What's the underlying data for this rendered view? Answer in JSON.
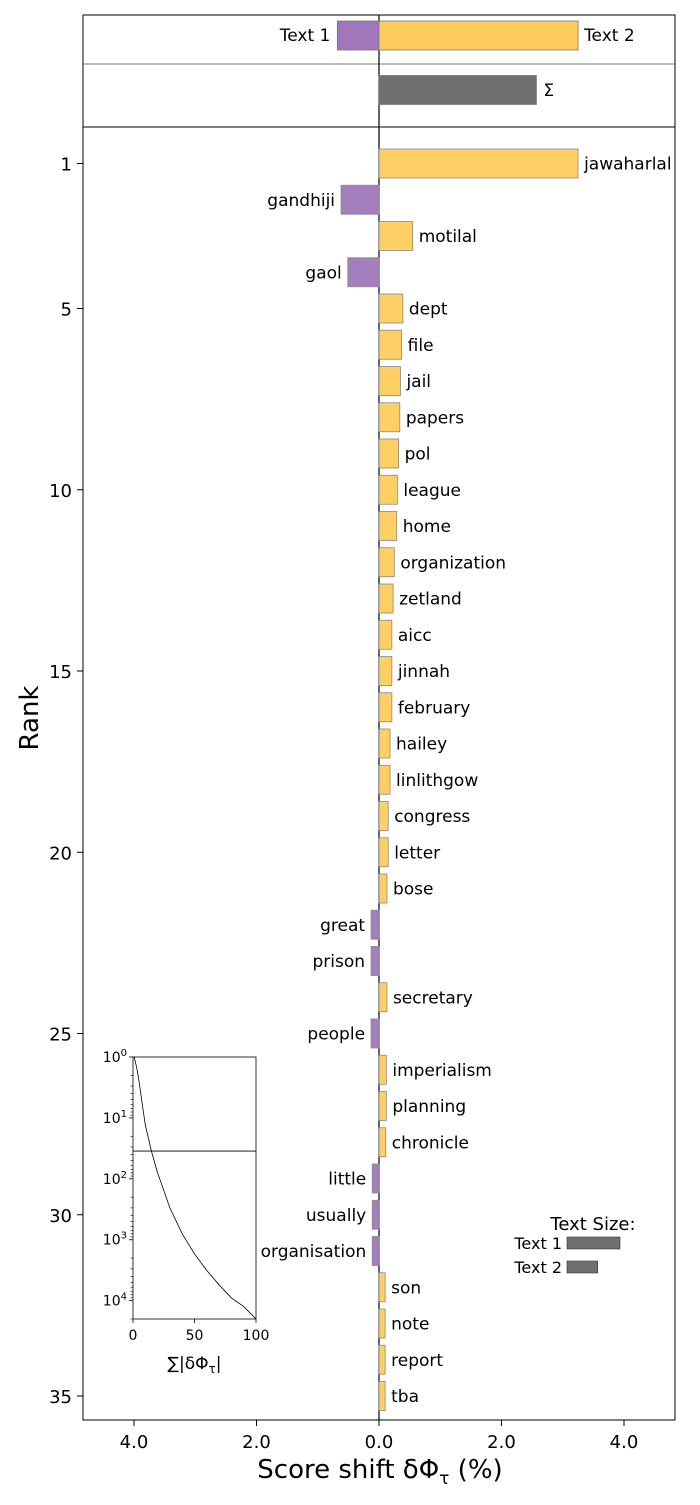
{
  "chart_data": {
    "type": "bar",
    "orientation": "horizontal",
    "xlabel": "Score shift δΦ",
    "xlabel_sub": "τ",
    "xlabel_suffix": " (%)",
    "ylabel": "Rank",
    "xlim": [
      -4.8,
      4.8
    ],
    "x_ticks": [
      -4,
      -2,
      0,
      2,
      4
    ],
    "x_tick_labels": [
      "4.0",
      "2.0",
      "0.0",
      "2.0",
      "4.0"
    ],
    "y_ticks": [
      1,
      5,
      10,
      15,
      20,
      25,
      30,
      35
    ],
    "colors": {
      "text1": "#A077BA",
      "text2": "#FECC5D",
      "sigma": "#707070"
    },
    "header": {
      "text1_label": "Text 1",
      "text1_value": -0.68,
      "text2_label": "Text 2",
      "text2_value": 3.25,
      "sigma_label": "Σ",
      "sigma_value": 2.57
    },
    "words": [
      {
        "rank": 1,
        "word": "jawaharlal",
        "value": 3.25
      },
      {
        "rank": 2,
        "word": "gandhiji",
        "value": -0.62
      },
      {
        "rank": 3,
        "word": "motilal",
        "value": 0.55
      },
      {
        "rank": 4,
        "word": "gaol",
        "value": -0.51
      },
      {
        "rank": 5,
        "word": "dept",
        "value": 0.39
      },
      {
        "rank": 6,
        "word": "file",
        "value": 0.37
      },
      {
        "rank": 7,
        "word": "jail",
        "value": 0.35
      },
      {
        "rank": 8,
        "word": "papers",
        "value": 0.34
      },
      {
        "rank": 9,
        "word": "pol",
        "value": 0.32
      },
      {
        "rank": 10,
        "word": "league",
        "value": 0.3
      },
      {
        "rank": 11,
        "word": "home",
        "value": 0.29
      },
      {
        "rank": 12,
        "word": "organization",
        "value": 0.25
      },
      {
        "rank": 13,
        "word": "zetland",
        "value": 0.23
      },
      {
        "rank": 14,
        "word": "aicc",
        "value": 0.21
      },
      {
        "rank": 15,
        "word": "jinnah",
        "value": 0.21
      },
      {
        "rank": 16,
        "word": "february",
        "value": 0.21
      },
      {
        "rank": 17,
        "word": "hailey",
        "value": 0.18
      },
      {
        "rank": 18,
        "word": "linlithgow",
        "value": 0.18
      },
      {
        "rank": 19,
        "word": "congress",
        "value": 0.15
      },
      {
        "rank": 20,
        "word": "letter",
        "value": 0.15
      },
      {
        "rank": 21,
        "word": "bose",
        "value": 0.13
      },
      {
        "rank": 22,
        "word": "great",
        "value": -0.13
      },
      {
        "rank": 23,
        "word": "prison",
        "value": -0.13
      },
      {
        "rank": 24,
        "word": "secretary",
        "value": 0.13
      },
      {
        "rank": 25,
        "word": "people",
        "value": -0.13
      },
      {
        "rank": 26,
        "word": "imperialism",
        "value": 0.12
      },
      {
        "rank": 27,
        "word": "planning",
        "value": 0.12
      },
      {
        "rank": 28,
        "word": "chronicle",
        "value": 0.11
      },
      {
        "rank": 29,
        "word": "little",
        "value": -0.11
      },
      {
        "rank": 30,
        "word": "usually",
        "value": -0.11
      },
      {
        "rank": 31,
        "word": "organisation",
        "value": -0.11
      },
      {
        "rank": 32,
        "word": "son",
        "value": 0.1
      },
      {
        "rank": 33,
        "word": "note",
        "value": 0.1
      },
      {
        "rank": 34,
        "word": "report",
        "value": 0.1
      },
      {
        "rank": 35,
        "word": "tba",
        "value": 0.1
      }
    ],
    "text_size_legend": {
      "title": "Text Size:",
      "items": [
        {
          "label": "Text 1",
          "value": 1.0
        },
        {
          "label": "Text 2",
          "value": 0.58
        }
      ]
    },
    "inset": {
      "xlabel": "∑|δΦ",
      "xlabel_sub": "τ",
      "xlabel_suffix": "|",
      "xlim": [
        0,
        100
      ],
      "x_ticks": [
        0,
        50,
        100
      ],
      "y_scale": "log",
      "y_inverted": true,
      "y_ticks": [
        {
          "value": 1,
          "base": "10",
          "exp": "0"
        },
        {
          "value": 10,
          "base": "10",
          "exp": "1"
        },
        {
          "value": 100,
          "base": "10",
          "exp": "2"
        },
        {
          "value": 1000,
          "base": "10",
          "exp": "3"
        },
        {
          "value": 10000,
          "base": "10",
          "exp": "4"
        }
      ],
      "ylim": [
        1,
        20000
      ],
      "reference_rank": 35,
      "curve": [
        [
          1,
          1
        ],
        [
          3,
          1.5
        ],
        [
          5,
          2.6
        ],
        [
          7,
          5
        ],
        [
          10,
          13
        ],
        [
          15,
          35
        ],
        [
          20,
          80
        ],
        [
          30,
          300
        ],
        [
          40,
          800
        ],
        [
          50,
          1700
        ],
        [
          60,
          3200
        ],
        [
          70,
          5500
        ],
        [
          80,
          9000
        ],
        [
          90,
          12500
        ],
        [
          100,
          20000
        ]
      ]
    }
  }
}
